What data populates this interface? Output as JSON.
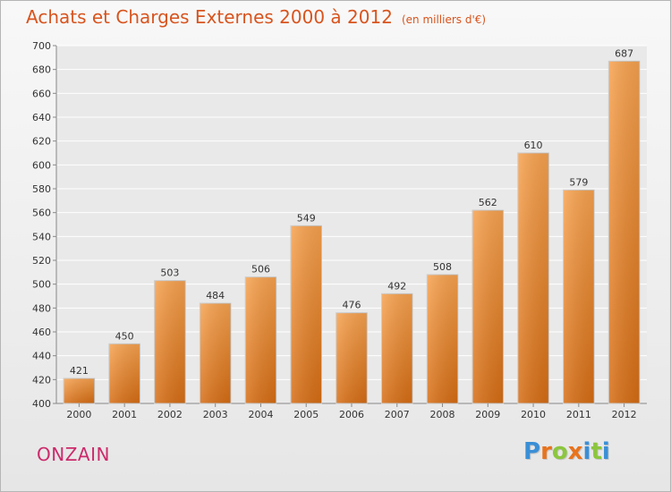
{
  "header": {
    "title": "Achats et Charges Externes 2000 à 2012",
    "unit": "(en milliers d'€)"
  },
  "footer": {
    "city": "ONZAIN",
    "brand_letters": [
      "P",
      "r",
      "o",
      "x",
      "i",
      "t",
      "i"
    ],
    "brand_colors": [
      "#3a8fd6",
      "#e8731d",
      "#8cc63e",
      "#e8731d",
      "#3a8fd6",
      "#8cc63e",
      "#3a8fd6"
    ]
  },
  "colors": {
    "bar_top": "#f7a24f",
    "bar_bottom": "#d66d14",
    "title": "#d8541e",
    "city": "#cc2a6b"
  },
  "chart_data": {
    "type": "bar",
    "title": "Achats et Charges Externes 2000 à 2012",
    "subtitle": "(en milliers d'€)",
    "xlabel": "",
    "ylabel": "",
    "categories": [
      "2000",
      "2001",
      "2002",
      "2003",
      "2004",
      "2005",
      "2006",
      "2007",
      "2008",
      "2009",
      "2010",
      "2011",
      "2012"
    ],
    "values": [
      421,
      450,
      503,
      484,
      506,
      549,
      476,
      492,
      508,
      562,
      610,
      579,
      687
    ],
    "ylim": [
      400,
      700
    ],
    "yticks": [
      400,
      420,
      440,
      460,
      480,
      500,
      520,
      540,
      560,
      580,
      600,
      620,
      640,
      660,
      680,
      700
    ],
    "grid": true,
    "legend": "none"
  }
}
